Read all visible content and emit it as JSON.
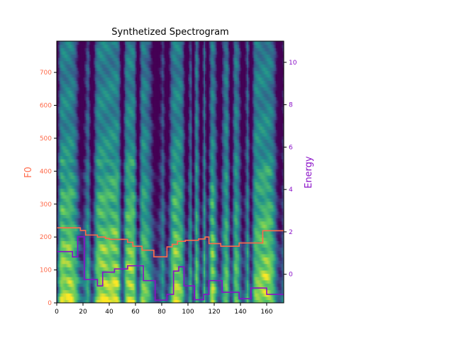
{
  "chart_data": {
    "type": "heatmap",
    "title": "Synthetized Spectrogram",
    "xlim": [
      0,
      173
    ],
    "ylim_left": [
      0,
      795
    ],
    "ylim_right": [
      -1.35,
      11
    ],
    "ylabel_left": "F0",
    "ylabel_right": "Energy",
    "colormap": "viridis",
    "x_ticks": [
      0,
      20,
      40,
      60,
      80,
      100,
      120,
      140,
      160
    ],
    "x_tick_labels": [
      "0",
      "20",
      "40",
      "60",
      "80",
      "100",
      "120",
      "140",
      "160"
    ],
    "y_left_ticks": [
      0,
      100,
      200,
      300,
      400,
      500,
      600,
      700
    ],
    "y_left_tick_labels": [
      "0",
      "100",
      "200",
      "300",
      "400",
      "500",
      "600",
      "700"
    ],
    "y_right_ticks": [
      0,
      2,
      4,
      6,
      8,
      10
    ],
    "y_right_tick_labels": [
      "0",
      "2",
      "4",
      "6",
      "8",
      "10"
    ],
    "series": [
      {
        "name": "F0",
        "axis": "left",
        "color": "#ff6a4a",
        "x": [
          0,
          18,
          18,
          22,
          22,
          31,
          31,
          37,
          37,
          40,
          40,
          54,
          54,
          58,
          58,
          65,
          65,
          74,
          74,
          84,
          84,
          88,
          88,
          92,
          92,
          98,
          98,
          108,
          108,
          113,
          113,
          116,
          116,
          125,
          125,
          139,
          139,
          157,
          157,
          173
        ],
        "y": [
          228,
          228,
          220,
          220,
          206,
          206,
          200,
          200,
          196,
          196,
          193,
          193,
          184,
          184,
          172,
          172,
          160,
          160,
          140,
          140,
          170,
          170,
          178,
          178,
          187,
          187,
          190,
          190,
          194,
          194,
          200,
          200,
          180,
          180,
          172,
          172,
          182,
          182,
          219,
          219
        ]
      },
      {
        "name": "Energy",
        "axis": "right",
        "color": "#8a10c8",
        "x": [
          0,
          12,
          12,
          16,
          16,
          21,
          21,
          31,
          31,
          35,
          35,
          44,
          44,
          54,
          54,
          66,
          66,
          75,
          75,
          84,
          84,
          89,
          89,
          93,
          93,
          97,
          97,
          105,
          105,
          112,
          112,
          116,
          116,
          126,
          126,
          139,
          139,
          148,
          148,
          160,
          160,
          173
        ],
        "y": [
          1.07,
          1.07,
          0.82,
          0.82,
          1.77,
          1.77,
          -0.25,
          -0.25,
          -0.55,
          -0.55,
          0.1,
          0.1,
          0.25,
          0.25,
          0.4,
          0.4,
          -0.3,
          -0.3,
          -1.22,
          -1.22,
          -0.95,
          -0.95,
          0.15,
          0.15,
          0.35,
          0.35,
          -0.55,
          -0.55,
          -1.2,
          -1.2,
          -0.95,
          -0.95,
          -0.3,
          -0.3,
          -0.85,
          -0.85,
          -1.15,
          -1.15,
          -0.65,
          -0.65,
          -0.95,
          -0.95
        ]
      }
    ],
    "text_color_left_axis": "#ff6a4a",
    "text_color_right_axis": "#8a10c8"
  }
}
